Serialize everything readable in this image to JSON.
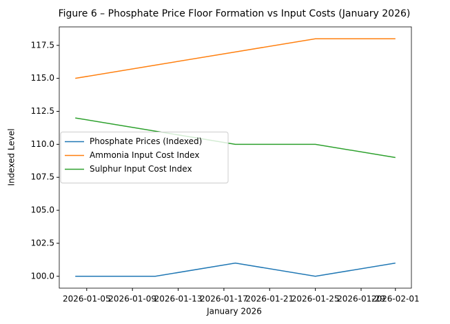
{
  "chart_data": {
    "type": "line",
    "title": "Figure 6 – Phosphate Price Floor Formation vs Input Costs (January 2026)",
    "x_label": "January 2026",
    "y_label": "Indexed Level",
    "x": [
      "2026-01-04",
      "2026-01-11",
      "2026-01-18",
      "2026-01-25",
      "2026-02-01"
    ],
    "series": [
      {
        "name": "Phosphate Prices (Indexed)",
        "color": "#1f77b4",
        "values": [
          100,
          100,
          101,
          100,
          101
        ]
      },
      {
        "name": "Ammonia Input Cost Index",
        "color": "#ff7f0e",
        "values": [
          115,
          116,
          117,
          118,
          118
        ]
      },
      {
        "name": "Sulphur Input Cost Index",
        "color": "#2ca02c",
        "values": [
          112,
          111,
          110,
          110,
          109
        ]
      }
    ],
    "xticks": [
      "2026-01-05",
      "2026-01-09",
      "2026-01-13",
      "2026-01-17",
      "2026-01-21",
      "2026-01-25",
      "2026-01-29",
      "2026-02-01"
    ],
    "ylim": [
      99.1,
      118.9
    ],
    "yticks": [
      {
        "value": 100,
        "label": "100.0"
      },
      {
        "value": 102.5,
        "label": "102.5"
      },
      {
        "value": 105,
        "label": "105.0"
      },
      {
        "value": 107.5,
        "label": "107.5"
      },
      {
        "value": 110,
        "label": "110.0"
      },
      {
        "value": 112.5,
        "label": "112.5"
      },
      {
        "value": 115,
        "label": "115.0"
      },
      {
        "value": 117.5,
        "label": "117.5"
      }
    ],
    "legend": "center left"
  }
}
